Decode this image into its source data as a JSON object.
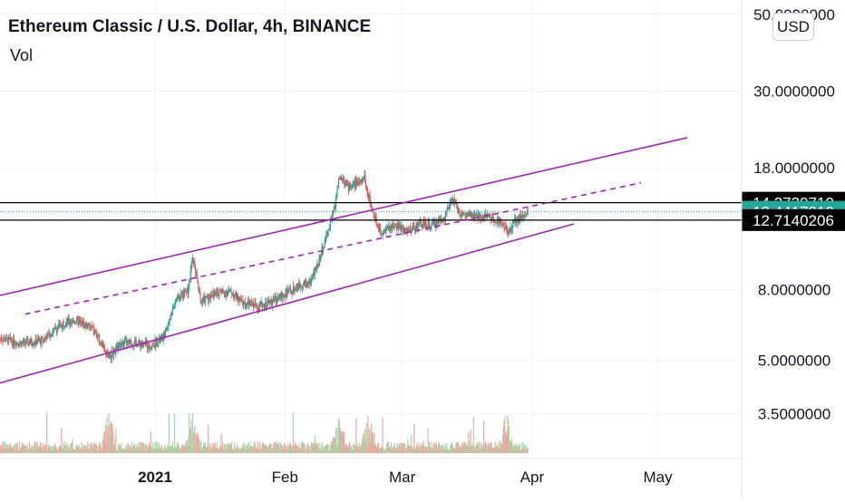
{
  "header": {
    "title": "Ethereum Classic / U.S. Dollar, 4h, BINANCE",
    "volume_label": "Vol",
    "currency_button": "USD"
  },
  "colors": {
    "up": "#26a69a",
    "down": "#ef5350",
    "channel": "#9c27b0",
    "price_marker": "#26a69a",
    "level_line": "#000000"
  },
  "chart_data": {
    "type": "candlestick",
    "scale": "log",
    "ylim": [
      2.6,
      55
    ],
    "y_tick_labels": [
      "50.0000000",
      "30.0000000",
      "18.0000000",
      "8.0000000",
      "5.0000000",
      "3.5000000"
    ],
    "y_ticks": [
      50,
      30,
      18,
      8,
      5,
      3.5
    ],
    "x_tick_labels": [
      "2021",
      "Feb",
      "Mar",
      "Apr",
      "May"
    ],
    "x_ticks": [
      "2021-01-01",
      "2021-02-01",
      "2021-03-01",
      "2021-04-01",
      "2021-05-01"
    ],
    "xlim": [
      "2020-11-25",
      "2021-05-21"
    ],
    "price_levels": [
      {
        "value": 14.2739719,
        "label": "14.2739719",
        "style": "level"
      },
      {
        "value": 13.441781,
        "label": "13.4417810",
        "style": "current"
      },
      {
        "value": 12.7140206,
        "label": "12.7140206",
        "style": "level"
      }
    ],
    "price_path": [
      [
        "2020-11-25",
        5.8
      ],
      [
        "2020-11-30",
        5.6
      ],
      [
        "2020-12-05",
        5.7
      ],
      [
        "2020-12-10",
        6.4
      ],
      [
        "2020-12-13",
        6.5
      ],
      [
        "2020-12-17",
        6.2
      ],
      [
        "2020-12-21",
        5.1
      ],
      [
        "2020-12-24",
        5.6
      ],
      [
        "2020-12-28",
        5.6
      ],
      [
        "2020-12-31",
        5.5
      ],
      [
        "2021-01-03",
        5.8
      ],
      [
        "2021-01-06",
        7.5
      ],
      [
        "2021-01-09",
        8.0
      ],
      [
        "2021-01-10",
        10.0
      ],
      [
        "2021-01-12",
        7.4
      ],
      [
        "2021-01-15",
        7.8
      ],
      [
        "2021-01-19",
        7.9
      ],
      [
        "2021-01-22",
        7.3
      ],
      [
        "2021-01-26",
        7.2
      ],
      [
        "2021-01-29",
        7.4
      ],
      [
        "2021-02-02",
        7.9
      ],
      [
        "2021-02-05",
        8.3
      ],
      [
        "2021-02-07",
        8.4
      ],
      [
        "2021-02-09",
        9.6
      ],
      [
        "2021-02-11",
        11.5
      ],
      [
        "2021-02-13",
        14.0
      ],
      [
        "2021-02-14",
        17.2
      ],
      [
        "2021-02-16",
        15.8
      ],
      [
        "2021-02-18",
        16.3
      ],
      [
        "2021-02-20",
        16.8
      ],
      [
        "2021-02-22",
        13.3
      ],
      [
        "2021-02-24",
        11.6
      ],
      [
        "2021-02-27",
        12.3
      ],
      [
        "2021-03-02",
        11.8
      ],
      [
        "2021-03-05",
        12.4
      ],
      [
        "2021-03-08",
        12.3
      ],
      [
        "2021-03-11",
        12.9
      ],
      [
        "2021-03-13",
        14.6
      ],
      [
        "2021-03-15",
        13.2
      ],
      [
        "2021-03-18",
        13.0
      ],
      [
        "2021-03-21",
        13.1
      ],
      [
        "2021-03-24",
        12.7
      ],
      [
        "2021-03-26",
        11.8
      ],
      [
        "2021-03-28",
        12.6
      ],
      [
        "2021-03-30",
        13.0
      ],
      [
        "2021-03-31",
        13.44
      ]
    ],
    "channel_lines": [
      {
        "name": "upper",
        "style": "solid",
        "points": [
          [
            "2020-11-25",
            7.7
          ],
          [
            "2021-05-08",
            22.0
          ]
        ]
      },
      {
        "name": "middle",
        "style": "dashed",
        "points": [
          [
            "2020-12-01",
            6.8
          ],
          [
            "2021-04-27",
            16.3
          ]
        ]
      },
      {
        "name": "lower",
        "style": "solid",
        "points": [
          [
            "2020-11-25",
            4.3
          ],
          [
            "2021-04-11",
            12.4
          ]
        ]
      }
    ]
  }
}
